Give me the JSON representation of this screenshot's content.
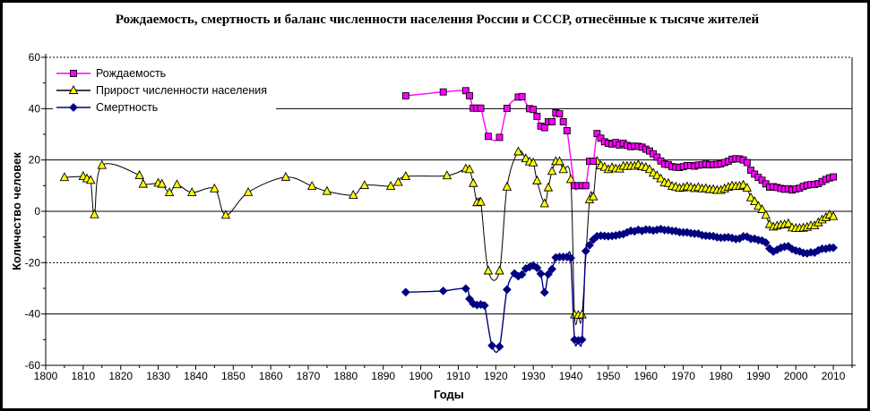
{
  "chart_data": {
    "type": "line",
    "title": "Рождаемость, смертность и баланс численности населения России и СССР, отнесённые к тысяче жителей",
    "xlabel": "Годы",
    "ylabel": "Количество человек",
    "xlim": [
      1800,
      2015
    ],
    "ylim": [
      -60,
      60
    ],
    "x_tick_step_major": 10,
    "x_tick_step_minor": 5,
    "y_tick_step_major": 20,
    "y_tick_step_minor": 10,
    "x_tick_labels": [
      "1800",
      "1810",
      "1820",
      "1830",
      "1840",
      "1850",
      "1860",
      "1870",
      "1880",
      "1890",
      "1900",
      "1910",
      "1920",
      "1930",
      "1940",
      "1950",
      "1960",
      "1970",
      "1980",
      "1990",
      "2000",
      "2010"
    ],
    "y_tick_labels": [
      "60",
      "40",
      "20",
      "0",
      "-20",
      "-40",
      "-60"
    ],
    "grid": "horizontal",
    "legend_position": "top-left",
    "background": "#FFFFFF",
    "series": [
      {
        "name": "Рождаемость",
        "color": "#FF00FF",
        "marker": "square",
        "marker_fill": "#FF00FF",
        "points": [
          [
            1896,
            45
          ],
          [
            1906,
            46.5
          ],
          [
            1912,
            47
          ],
          [
            1913,
            45
          ],
          [
            1914,
            40.2
          ],
          [
            1915,
            40.2
          ],
          [
            1916,
            40.2
          ],
          [
            1918,
            29.2
          ],
          [
            1921,
            28.8
          ],
          [
            1923,
            40.1
          ],
          [
            1926,
            44.5
          ],
          [
            1927,
            44.7
          ],
          [
            1929,
            40
          ],
          [
            1930,
            39.7
          ],
          [
            1931,
            37
          ],
          [
            1932,
            33.2
          ],
          [
            1933,
            32.6
          ],
          [
            1934,
            34.9
          ],
          [
            1935,
            34.9
          ],
          [
            1936,
            38.4
          ],
          [
            1937,
            38
          ],
          [
            1938,
            34.9
          ],
          [
            1939,
            31.4
          ],
          [
            1941,
            10
          ],
          [
            1942,
            10
          ],
          [
            1943,
            10
          ],
          [
            1944,
            10
          ],
          [
            1945,
            19.5
          ],
          [
            1946,
            19.5
          ],
          [
            1947,
            30.3
          ],
          [
            1948,
            28.5
          ],
          [
            1949,
            27.1
          ],
          [
            1950,
            26.5
          ],
          [
            1951,
            26.2
          ],
          [
            1952,
            26.8
          ],
          [
            1953,
            25.8
          ],
          [
            1954,
            26.5
          ],
          [
            1955,
            25.7
          ],
          [
            1956,
            25.2
          ],
          [
            1957,
            25.4
          ],
          [
            1958,
            25.3
          ],
          [
            1959,
            25
          ],
          [
            1960,
            24.2
          ],
          [
            1961,
            23.5
          ],
          [
            1962,
            22.4
          ],
          [
            1963,
            21.1
          ],
          [
            1964,
            19.6
          ],
          [
            1965,
            18.4
          ],
          [
            1966,
            18.2
          ],
          [
            1967,
            17.4
          ],
          [
            1968,
            17.2
          ],
          [
            1969,
            17.1
          ],
          [
            1970,
            17.4
          ],
          [
            1971,
            17.8
          ],
          [
            1972,
            17.8
          ],
          [
            1973,
            17.6
          ],
          [
            1974,
            18
          ],
          [
            1975,
            18.1
          ],
          [
            1976,
            18.4
          ],
          [
            1977,
            18.1
          ],
          [
            1978,
            18.2
          ],
          [
            1979,
            18.3
          ],
          [
            1980,
            18.5
          ],
          [
            1981,
            19
          ],
          [
            1982,
            19.5
          ],
          [
            1983,
            20.3
          ],
          [
            1984,
            20.5
          ],
          [
            1985,
            20.4
          ],
          [
            1986,
            20
          ],
          [
            1987,
            19
          ],
          [
            1988,
            16
          ],
          [
            1989,
            14.5
          ],
          [
            1990,
            13.2
          ],
          [
            1991,
            12.1
          ],
          [
            1992,
            10.7
          ],
          [
            1993,
            9.4
          ],
          [
            1994,
            9.6
          ],
          [
            1995,
            9.3
          ],
          [
            1996,
            8.9
          ],
          [
            1997,
            8.6
          ],
          [
            1998,
            8.8
          ],
          [
            1999,
            8.3
          ],
          [
            2000,
            8.7
          ],
          [
            2001,
            9
          ],
          [
            2002,
            9.7
          ],
          [
            2003,
            10.2
          ],
          [
            2004,
            10.4
          ],
          [
            2005,
            10.5
          ],
          [
            2006,
            10.8
          ],
          [
            2007,
            11.6
          ],
          [
            2008,
            12.4
          ],
          [
            2009,
            13
          ],
          [
            2010,
            13.4
          ]
        ]
      },
      {
        "name": "Прирост численности населения",
        "color": "#000000",
        "marker": "triangle",
        "marker_fill": "#FFFF00",
        "points": [
          [
            1805,
            13.2
          ],
          [
            1810,
            13.6
          ],
          [
            1811,
            12.7
          ],
          [
            1812,
            12.1
          ],
          [
            1813,
            -1.3
          ],
          [
            1815,
            17.9
          ],
          [
            1825,
            14
          ],
          [
            1826,
            10.6
          ],
          [
            1830,
            11
          ],
          [
            1831,
            10.6
          ],
          [
            1833,
            7.3
          ],
          [
            1835,
            10.4
          ],
          [
            1839,
            7.3
          ],
          [
            1845,
            8.8
          ],
          [
            1848,
            -1.5
          ],
          [
            1854,
            7.4
          ],
          [
            1864,
            13.3
          ],
          [
            1871,
            9.8
          ],
          [
            1875,
            7.8
          ],
          [
            1882,
            6.3
          ],
          [
            1885,
            10.1
          ],
          [
            1892,
            9.8
          ],
          [
            1894,
            11.3
          ],
          [
            1896,
            13.6
          ],
          [
            1907,
            13.9
          ],
          [
            1912,
            16.6
          ],
          [
            1913,
            16.3
          ],
          [
            1914,
            10.9
          ],
          [
            1915,
            3.4
          ],
          [
            1916,
            3.6
          ],
          [
            1918,
            -23.2
          ],
          [
            1921,
            -23.2
          ],
          [
            1923,
            9.5
          ],
          [
            1926,
            23.2
          ],
          [
            1928,
            20.5
          ],
          [
            1929,
            19.3
          ],
          [
            1930,
            18.9
          ],
          [
            1931,
            11.9
          ],
          [
            1933,
            3
          ],
          [
            1934,
            9.2
          ],
          [
            1935,
            15.6
          ],
          [
            1936,
            19.4
          ],
          [
            1937,
            19.4
          ],
          [
            1938,
            16.3
          ],
          [
            1940,
            12.4
          ],
          [
            1941,
            -40.3
          ],
          [
            1942,
            -40.5
          ],
          [
            1943,
            -40.3
          ],
          [
            1945,
            4.5
          ],
          [
            1946,
            5.7
          ],
          [
            1947,
            19.5
          ],
          [
            1948,
            17.8
          ],
          [
            1949,
            17.2
          ],
          [
            1950,
            16.3
          ],
          [
            1951,
            17
          ],
          [
            1952,
            16.6
          ],
          [
            1953,
            16.5
          ],
          [
            1954,
            17.6
          ],
          [
            1955,
            17.5
          ],
          [
            1956,
            17.6
          ],
          [
            1957,
            17.6
          ],
          [
            1958,
            18.1
          ],
          [
            1959,
            17.4
          ],
          [
            1960,
            17.1
          ],
          [
            1961,
            16.3
          ],
          [
            1962,
            14.9
          ],
          [
            1963,
            13.9
          ],
          [
            1964,
            12.7
          ],
          [
            1965,
            11.1
          ],
          [
            1966,
            10.9
          ],
          [
            1967,
            9.8
          ],
          [
            1968,
            9.5
          ],
          [
            1969,
            9
          ],
          [
            1970,
            9.2
          ],
          [
            1971,
            9.6
          ],
          [
            1972,
            9.3
          ],
          [
            1973,
            8.9
          ],
          [
            1974,
            9.3
          ],
          [
            1975,
            8.8
          ],
          [
            1976,
            8.9
          ],
          [
            1977,
            8.5
          ],
          [
            1978,
            8.5
          ],
          [
            1979,
            8.2
          ],
          [
            1980,
            8.2
          ],
          [
            1981,
            8.8
          ],
          [
            1982,
            9.4
          ],
          [
            1983,
            9.9
          ],
          [
            1984,
            9.7
          ],
          [
            1985,
            9.8
          ],
          [
            1986,
            10.2
          ],
          [
            1987,
            9.1
          ],
          [
            1988,
            5.3
          ],
          [
            1989,
            3.8
          ],
          [
            1990,
            2
          ],
          [
            1991,
            0.7
          ],
          [
            1992,
            -1.5
          ],
          [
            1993,
            -5.1
          ],
          [
            1994,
            -6.1
          ],
          [
            1995,
            -5.7
          ],
          [
            1996,
            -5.3
          ],
          [
            1997,
            -5.2
          ],
          [
            1998,
            -4.8
          ],
          [
            1999,
            -6.4
          ],
          [
            2000,
            -6.6
          ],
          [
            2001,
            -6.6
          ],
          [
            2002,
            -6.5
          ],
          [
            2003,
            -6.2
          ],
          [
            2004,
            -5.6
          ],
          [
            2005,
            -5.6
          ],
          [
            2006,
            -4.4
          ],
          [
            2007,
            -3.3
          ],
          [
            2008,
            -2.4
          ],
          [
            2009,
            -1.4
          ],
          [
            2010,
            -2
          ]
        ]
      },
      {
        "name": "Смертность",
        "color": "#000080",
        "marker": "diamond",
        "marker_fill": "#000080",
        "points": [
          [
            1896,
            -31.5
          ],
          [
            1906,
            -31
          ],
          [
            1912,
            -30.1
          ],
          [
            1913,
            -34.1
          ],
          [
            1914,
            -36
          ],
          [
            1915,
            -36.5
          ],
          [
            1916,
            -36.3
          ],
          [
            1917,
            -36.7
          ],
          [
            1919,
            -52.3
          ],
          [
            1921,
            -52.7
          ],
          [
            1923,
            -30.5
          ],
          [
            1925,
            -24.2
          ],
          [
            1926,
            -25.3
          ],
          [
            1927,
            -24.6
          ],
          [
            1928,
            -22.3
          ],
          [
            1929,
            -21.7
          ],
          [
            1930,
            -21.1
          ],
          [
            1931,
            -22
          ],
          [
            1932,
            -24.3
          ],
          [
            1933,
            -31.6
          ],
          [
            1934,
            -24.5
          ],
          [
            1935,
            -22.5
          ],
          [
            1936,
            -18
          ],
          [
            1937,
            -17.8
          ],
          [
            1938,
            -17.8
          ],
          [
            1939,
            -17.8
          ],
          [
            1940,
            -18.2
          ],
          [
            1941,
            -50
          ],
          [
            1942,
            -50.3
          ],
          [
            1943,
            -50
          ],
          [
            1944,
            -15.5
          ],
          [
            1945,
            -13.2
          ],
          [
            1946,
            -11
          ],
          [
            1947,
            -9.7
          ],
          [
            1948,
            -9.5
          ],
          [
            1949,
            -9.6
          ],
          [
            1950,
            -9.7
          ],
          [
            1951,
            -9.6
          ],
          [
            1952,
            -9.4
          ],
          [
            1953,
            -9.1
          ],
          [
            1954,
            -8.9
          ],
          [
            1955,
            -8.2
          ],
          [
            1956,
            -7.6
          ],
          [
            1957,
            -7.8
          ],
          [
            1958,
            -7.2
          ],
          [
            1959,
            -7.6
          ],
          [
            1960,
            -7.1
          ],
          [
            1961,
            -7.2
          ],
          [
            1962,
            -7.5
          ],
          [
            1963,
            -7.2
          ],
          [
            1964,
            -6.9
          ],
          [
            1965,
            -7.3
          ],
          [
            1966,
            -7.3
          ],
          [
            1967,
            -7.6
          ],
          [
            1968,
            -7.7
          ],
          [
            1969,
            -8.1
          ],
          [
            1970,
            -8.2
          ],
          [
            1971,
            -8.2
          ],
          [
            1972,
            -8.5
          ],
          [
            1973,
            -8.7
          ],
          [
            1974,
            -8.7
          ],
          [
            1975,
            -9.3
          ],
          [
            1976,
            -9.5
          ],
          [
            1977,
            -9.6
          ],
          [
            1978,
            -9.7
          ],
          [
            1979,
            -10.1
          ],
          [
            1980,
            -10.3
          ],
          [
            1981,
            -10.2
          ],
          [
            1982,
            -10.1
          ],
          [
            1983,
            -10.4
          ],
          [
            1984,
            -10.8
          ],
          [
            1985,
            -10.6
          ],
          [
            1986,
            -9.8
          ],
          [
            1987,
            -9.9
          ],
          [
            1988,
            -10.7
          ],
          [
            1989,
            -10.7
          ],
          [
            1990,
            -11.2
          ],
          [
            1991,
            -11.4
          ],
          [
            1992,
            -12.2
          ],
          [
            1993,
            -14.5
          ],
          [
            1994,
            -15.7
          ],
          [
            1995,
            -15
          ],
          [
            1996,
            -14.2
          ],
          [
            1997,
            -13.8
          ],
          [
            1998,
            -13.6
          ],
          [
            1999,
            -14.7
          ],
          [
            2000,
            -15.3
          ],
          [
            2001,
            -15.6
          ],
          [
            2002,
            -16.2
          ],
          [
            2003,
            -16.4
          ],
          [
            2004,
            -16
          ],
          [
            2005,
            -16.1
          ],
          [
            2006,
            -15.2
          ],
          [
            2007,
            -14.6
          ],
          [
            2008,
            -14.6
          ],
          [
            2009,
            -14.2
          ],
          [
            2010,
            -14.2
          ]
        ]
      }
    ]
  }
}
